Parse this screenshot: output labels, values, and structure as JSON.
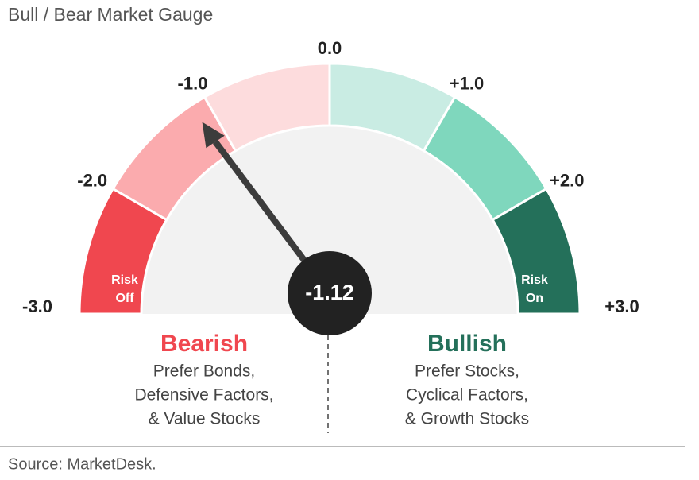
{
  "chart_data": {
    "type": "gauge",
    "title": "Bull / Bear Market Gauge",
    "value": -1.12,
    "needle_color": "#3c3c3c",
    "xlim": [
      -3,
      3
    ],
    "xticks": [
      {
        "value": -3,
        "label": "-3.0"
      },
      {
        "value": -2,
        "label": "-2.0"
      },
      {
        "value": -1,
        "label": "-1.0"
      },
      {
        "value": 0,
        "label": "0.0"
      },
      {
        "value": 1,
        "label": "+1.0"
      },
      {
        "value": 2,
        "label": "+2.0"
      },
      {
        "value": 3,
        "label": "+3.0"
      }
    ],
    "segments": [
      {
        "range": [
          -3,
          -2
        ],
        "color": "#f0474f",
        "label_lines": [
          "Risk",
          "Off"
        ]
      },
      {
        "range": [
          -2,
          -1
        ],
        "color": "#fbabae"
      },
      {
        "range": [
          -1,
          0
        ],
        "color": "#fddcdd"
      },
      {
        "range": [
          0,
          1
        ],
        "color": "#c9ece3"
      },
      {
        "range": [
          1,
          2
        ],
        "color": "#7fd7bd"
      },
      {
        "range": [
          2,
          3
        ],
        "color": "#24705a",
        "label_lines": [
          "Risk",
          "On"
        ]
      }
    ],
    "annotations": [
      {
        "heading": "Bearish",
        "color": "#f0474f",
        "lines": [
          "Prefer Bonds,",
          "Defensive Factors,",
          "& Value Stocks"
        ]
      },
      {
        "heading": "Bullish",
        "color": "#24705a",
        "lines": [
          "Prefer Stocks,",
          "Cyclical Factors,",
          "& Growth Stocks"
        ]
      }
    ],
    "source": "Source: MarketDesk."
  }
}
